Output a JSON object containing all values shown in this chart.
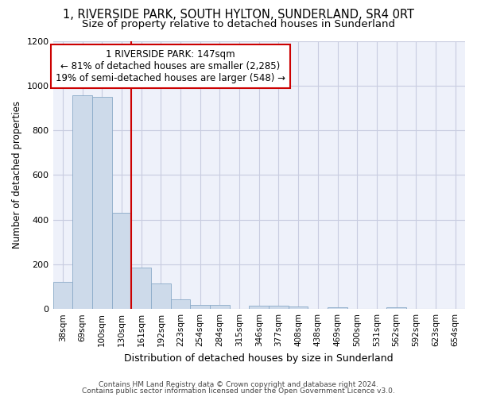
{
  "title": "1, RIVERSIDE PARK, SOUTH HYLTON, SUNDERLAND, SR4 0RT",
  "subtitle": "Size of property relative to detached houses in Sunderland",
  "xlabel": "Distribution of detached houses by size in Sunderland",
  "ylabel": "Number of detached properties",
  "categories": [
    "38sqm",
    "69sqm",
    "100sqm",
    "130sqm",
    "161sqm",
    "192sqm",
    "223sqm",
    "254sqm",
    "284sqm",
    "315sqm",
    "346sqm",
    "377sqm",
    "408sqm",
    "438sqm",
    "469sqm",
    "500sqm",
    "531sqm",
    "562sqm",
    "592sqm",
    "623sqm",
    "654sqm"
  ],
  "values": [
    120,
    955,
    950,
    430,
    185,
    115,
    45,
    20,
    18,
    0,
    15,
    15,
    10,
    0,
    8,
    0,
    0,
    8,
    0,
    0,
    0
  ],
  "bar_color": "#cddaea",
  "bar_edge_color": "#8aaac8",
  "red_line_x": 3.5,
  "annotation_line1": "1 RIVERSIDE PARK: 147sqm",
  "annotation_line2": "← 81% of detached houses are smaller (2,285)",
  "annotation_line3": "19% of semi-detached houses are larger (548) →",
  "annotation_box_color": "#ffffff",
  "annotation_box_edge": "#cc0000",
  "ylim": [
    0,
    1200
  ],
  "yticks": [
    0,
    200,
    400,
    600,
    800,
    1000,
    1200
  ],
  "grid_color": "#c8cce0",
  "background_color": "#eef1fa",
  "footnote1": "Contains HM Land Registry data © Crown copyright and database right 2024.",
  "footnote2": "Contains public sector information licensed under the Open Government Licence v3.0.",
  "title_fontsize": 10.5,
  "subtitle_fontsize": 9.5,
  "ylabel_fontsize": 8.5,
  "xlabel_fontsize": 9,
  "red_line_color": "#cc0000",
  "annot_fontsize": 8.5,
  "tick_fontsize": 7.5
}
